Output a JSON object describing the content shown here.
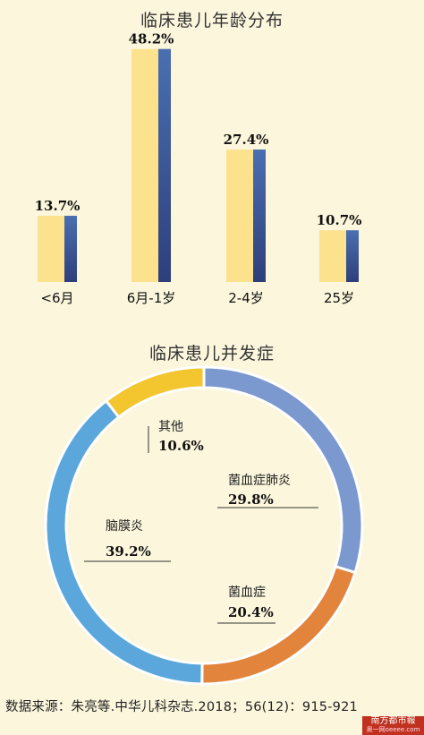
{
  "charts": {
    "age": {
      "title": "临床患儿年龄分布"
    },
    "complication": {
      "title": "临床患儿并发症"
    }
  },
  "chart_data": [
    {
      "type": "bar",
      "title": "临床患儿年龄分布",
      "categories": [
        "<6月",
        "6月-1岁",
        "2-4岁",
        "25岁"
      ],
      "values": [
        13.7,
        48.2,
        27.4,
        10.7
      ],
      "value_labels": [
        "13.7%",
        "48.2%",
        "27.4%",
        "10.7%"
      ],
      "ylim": [
        0,
        50
      ],
      "grid": false,
      "colors": {
        "bar_front": "#fde28e",
        "bar_side": "#4a6fb0",
        "bar_side_dark": "#2e3f7a"
      }
    },
    {
      "type": "pie",
      "title": "临床患儿并发症",
      "donut": true,
      "labels": [
        "菌血症肺炎",
        "菌血症",
        "脑膜炎",
        "其他"
      ],
      "values": [
        29.8,
        20.4,
        39.2,
        10.6
      ],
      "value_labels": [
        "29.8%",
        "20.4%",
        "39.2%",
        "10.6%"
      ],
      "colors": [
        "#7b98cf",
        "#e2843c",
        "#5ba7db",
        "#f3c52e"
      ]
    }
  ],
  "footer": {
    "source": "数据来源：朱亮等.中华儿科杂志.2018；56(12)：915-921"
  },
  "logo": {
    "name": "南方都市報",
    "sub": "奥一网oeeee.com"
  }
}
